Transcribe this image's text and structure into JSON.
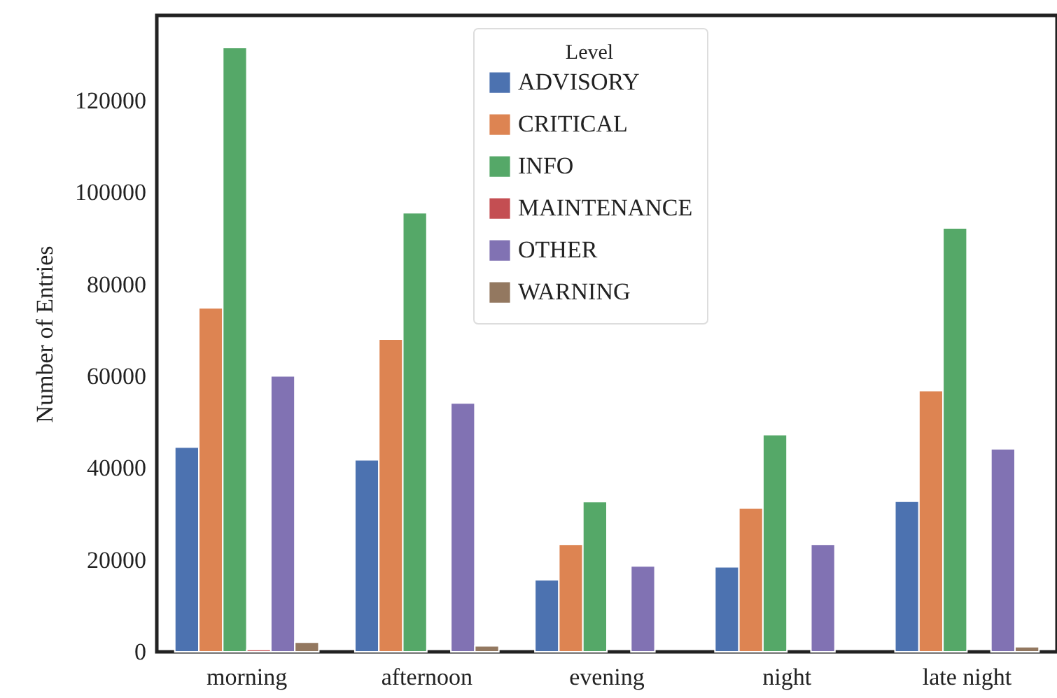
{
  "chart_data": {
    "type": "bar",
    "ylabel": "Number of Entries",
    "legend_title": "Level",
    "categories": [
      "morning",
      "afternoon",
      "evening",
      "night",
      "late night"
    ],
    "series": [
      {
        "name": "ADVISORY",
        "color": "#4c72b0",
        "values": [
          44600,
          41800,
          15700,
          18500,
          32800
        ]
      },
      {
        "name": "CRITICAL",
        "color": "#dd8452",
        "values": [
          74900,
          68100,
          23400,
          31300,
          56900
        ]
      },
      {
        "name": "INFO",
        "color": "#55a868",
        "values": [
          131600,
          95600,
          32700,
          47300,
          92300
        ]
      },
      {
        "name": "MAINTENANCE",
        "color": "#c44e52",
        "values": [
          500,
          null,
          null,
          null,
          null
        ]
      },
      {
        "name": "OTHER",
        "color": "#8172b3",
        "values": [
          60100,
          54200,
          18700,
          23400,
          44200
        ]
      },
      {
        "name": "WARNING",
        "color": "#937860",
        "values": [
          2100,
          1300,
          null,
          null,
          1100
        ]
      }
    ],
    "ylim": [
      0,
      138600
    ],
    "yticks": [
      0,
      20000,
      40000,
      60000,
      80000,
      100000,
      120000
    ],
    "grid": false,
    "legend": "top"
  }
}
